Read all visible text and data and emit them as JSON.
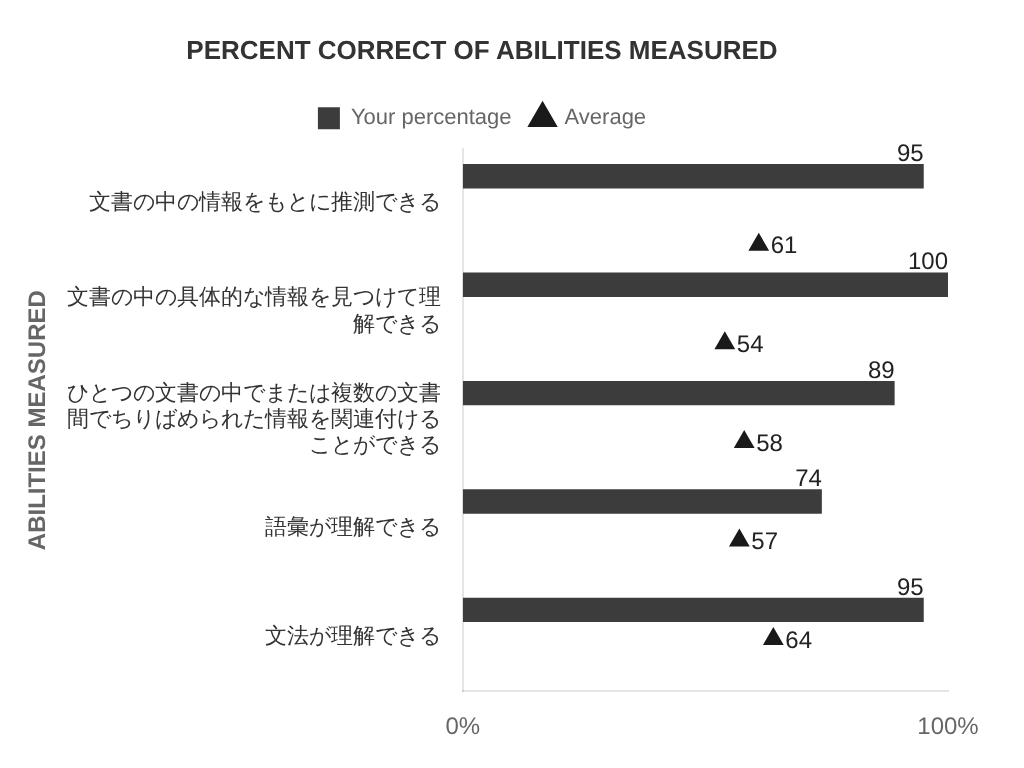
{
  "chart_data": {
    "type": "bar",
    "orientation": "horizontal",
    "title": "PERCENT CORRECT OF ABILITIES MEASURED",
    "ylabel": "ABILITIES MEASURED",
    "categories": [
      "文書の中の情報をもとに推測できる",
      "文書の中の具体的な情報を見つけて理解できる",
      "ひとつの文書の中でまたは複数の文書間でちりばめられた情報を関連付けることができる",
      "語彙が理解できる",
      "文法が理解できる"
    ],
    "series": [
      {
        "name": "Your percentage",
        "type": "bar",
        "color": "#3c3c3c",
        "values": [
          95,
          100,
          89,
          74,
          95
        ]
      },
      {
        "name": "Average",
        "type": "scatter",
        "color": "#1a1a1a",
        "values": [
          61,
          54,
          58,
          57,
          64
        ]
      }
    ],
    "xlim": [
      0,
      100
    ],
    "xticks": [
      {
        "value": 0,
        "label": "0%"
      },
      {
        "value": 100,
        "label": "100%"
      }
    ],
    "marker": "triangle",
    "data_labels": true,
    "legend": "top",
    "grid": false
  }
}
